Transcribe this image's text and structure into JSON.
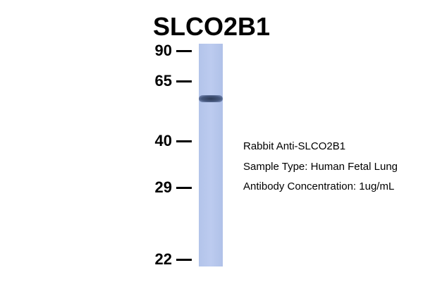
{
  "header": {
    "title": "SLCO2B1"
  },
  "markers": [
    "90",
    "65",
    "40",
    "29",
    "22"
  ],
  "annotations": [
    "Rabbit Anti-SLCO2B1",
    "Sample Type: Human Fetal Lung",
    "Antibody Concentration: 1ug/mL"
  ]
}
